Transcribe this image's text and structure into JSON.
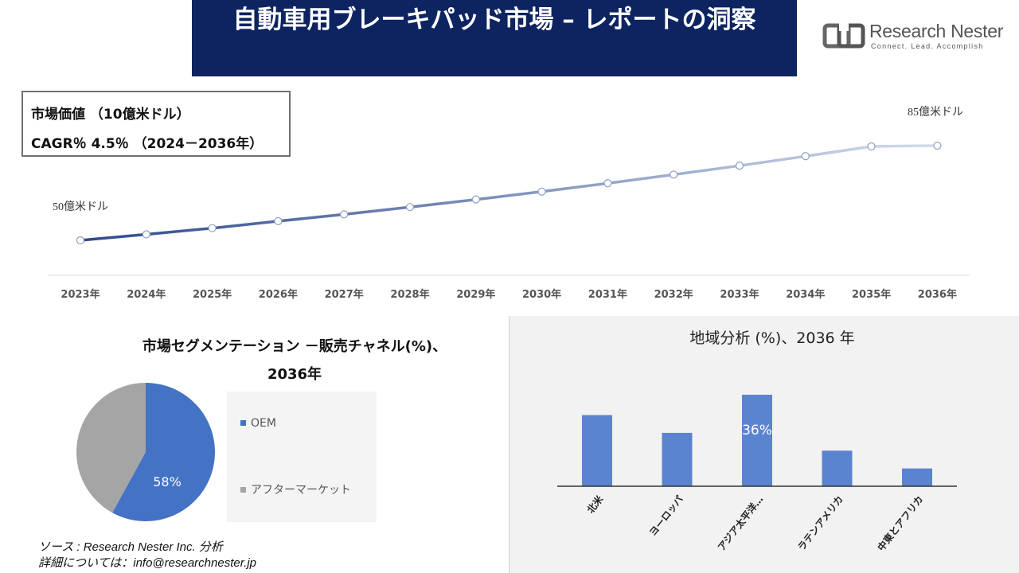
{
  "title": "自動車用ブレーキパッド市場 – レポートの洞察",
  "logo": {
    "name": "Research Nester",
    "tagline": "Connect. Lead. Accomplish"
  },
  "info_box": {
    "line1": "市場価値 （10億米ドル）",
    "line2": "CAGR％ 4.5％ （2024－2036年）"
  },
  "colors": {
    "banner": "#0d2461",
    "line_start": "#2e4a8c",
    "line_end": "#d2dcec",
    "pie_oem": "#4472c4",
    "pie_after": "#a5a5a5",
    "bar": "#5b84d0"
  },
  "chart_data": [
    {
      "type": "line",
      "x": [
        "2023年",
        "2024年",
        "2025年",
        "2026年",
        "2027年",
        "2028年",
        "2029年",
        "2030年",
        "2031年",
        "2032年",
        "2033年",
        "2034年",
        "2035年",
        "2036年"
      ],
      "series": [
        {
          "values": [
            50,
            52.2,
            54.5,
            57.1,
            59.6,
            62.3,
            65.1,
            68.0,
            71.1,
            74.3,
            77.6,
            81.1,
            84.7,
            85
          ]
        }
      ],
      "annotations": {
        "start": "50億米ドル",
        "end": "85億米ドル"
      },
      "grid": false
    },
    {
      "type": "pie",
      "title_line1": "市場セグメンテーション －販売チャネル(%)、",
      "title_line2": "2036年",
      "slices": [
        {
          "label": "OEM",
          "value": 58,
          "data_label": "58%"
        },
        {
          "label": "アフターマーケット",
          "value": 42
        }
      ],
      "legend": "right"
    },
    {
      "type": "bar",
      "title": "地域分析 (%)、2036 年",
      "categories": [
        "北米",
        "ヨーロッパ",
        "アジア太平洋…",
        "ラテンアメリカ",
        "中東とアフリカ"
      ],
      "values": [
        28,
        21,
        36,
        14,
        7
      ],
      "data_labels": [
        "",
        "",
        "36%",
        "",
        ""
      ],
      "ylim": [
        0,
        36
      ]
    }
  ],
  "source": {
    "line1": "ソース : Research Nester Inc. 分析",
    "line2": "詳細については：info@researchnester.jp"
  }
}
